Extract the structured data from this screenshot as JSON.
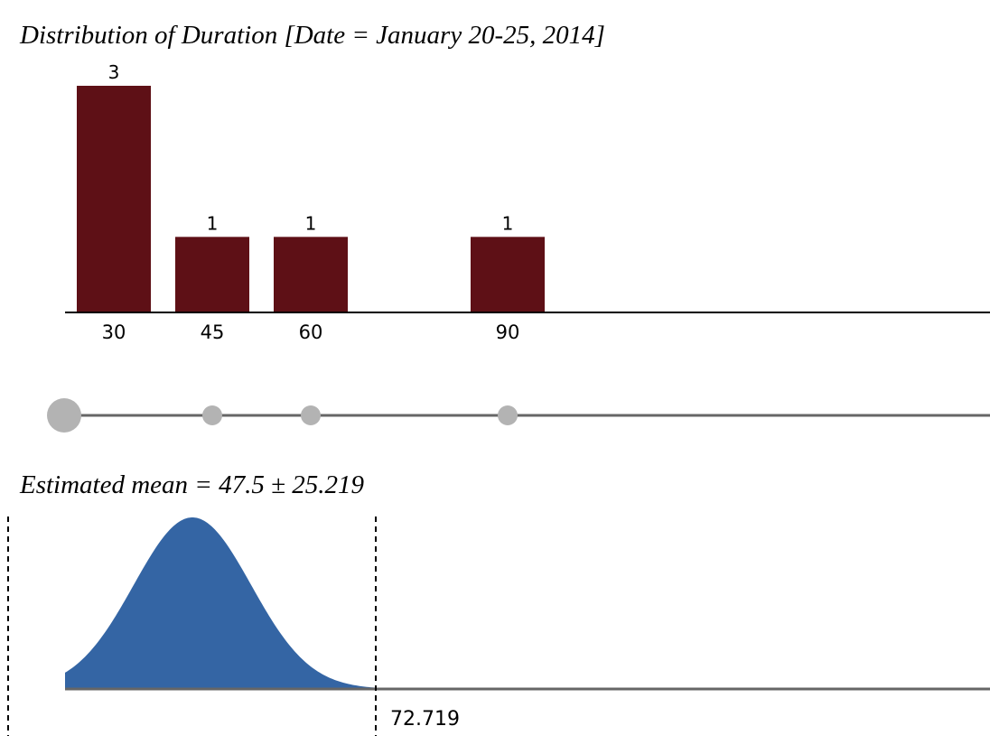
{
  "chart_data": [
    {
      "type": "bar",
      "title": "Distribution of Duration [Date = January 20-25, 2014]",
      "x": [
        30,
        45,
        60,
        90
      ],
      "tick_labels": [
        "30",
        "45",
        "60",
        "90"
      ],
      "values": [
        3,
        1,
        1,
        1
      ],
      "value_labels": [
        "3",
        "1",
        "1",
        "1"
      ],
      "grid": false,
      "colors": {
        "bar": "#5e1016",
        "axis": "#000000"
      }
    },
    {
      "type": "scatter",
      "x": [
        30,
        45,
        60,
        90
      ],
      "counts": [
        3,
        1,
        1,
        1
      ],
      "colors": {
        "dot": "#b3b3b3",
        "line": "#666666"
      }
    },
    {
      "type": "area",
      "title": "Estimated mean = 47.5 ± 25.219",
      "mean": 47.5,
      "margin": 25.219,
      "cutoff_label": "72.719",
      "grid": false,
      "colors": {
        "fill": "#3465a4",
        "axis": "#666666"
      }
    }
  ]
}
